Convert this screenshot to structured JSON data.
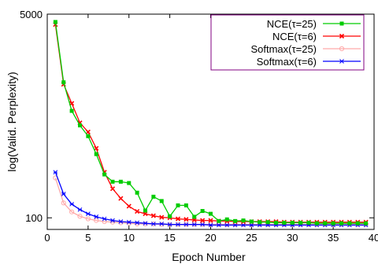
{
  "chart_data": {
    "type": "line",
    "xlabel": "Epoch Number",
    "ylabel": "log(Valid. Perplexity)",
    "xlim": [
      0,
      40
    ],
    "ylim": [
      80,
      5000
    ],
    "yscale": "log",
    "xticks": [
      0,
      5,
      10,
      15,
      20,
      25,
      30,
      35,
      40
    ],
    "yticks": [
      100,
      5000
    ],
    "grid": false,
    "legend": "top-right",
    "series": [
      {
        "name": "NCE(τ=25)",
        "color": "#00cc00",
        "marker": "square-filled",
        "x": [
          1,
          2,
          3,
          4,
          5,
          6,
          7,
          8,
          9,
          10,
          11,
          12,
          13,
          14,
          15,
          16,
          17,
          18,
          19,
          20,
          21,
          22,
          23,
          24,
          25,
          26,
          27,
          28,
          29,
          30,
          31,
          32,
          33,
          34,
          35,
          36,
          37,
          38,
          39
        ],
        "values": [
          4300,
          1350,
          780,
          590,
          480,
          340,
          230,
          200,
          200,
          195,
          162,
          115,
          150,
          138,
          103,
          127,
          127,
          102,
          114,
          108,
          94,
          97,
          94,
          95,
          93,
          92,
          92,
          91,
          91,
          91,
          91,
          91,
          90,
          90,
          90,
          90,
          90,
          90,
          90
        ]
      },
      {
        "name": "NCE(τ=6)",
        "color": "#ff0000",
        "marker": "x-filled",
        "x": [
          1,
          2,
          3,
          4,
          5,
          6,
          7,
          8,
          9,
          10,
          11,
          12,
          13,
          14,
          15,
          16,
          17,
          18,
          19,
          20,
          21,
          22,
          23,
          24,
          25,
          26,
          27,
          28,
          29,
          30,
          31,
          32,
          33,
          34,
          35,
          36,
          37,
          38,
          39
        ],
        "values": [
          4100,
          1300,
          900,
          620,
          520,
          380,
          240,
          175,
          145,
          125,
          113,
          108,
          104,
          101,
          100,
          98,
          97,
          96,
          95,
          95,
          94,
          94,
          93,
          93,
          93,
          93,
          93,
          93,
          92,
          92,
          92,
          92,
          92,
          92,
          92,
          92,
          92,
          92,
          92
        ]
      },
      {
        "name": "Softmax(τ=25)",
        "color": "#ffaaaa",
        "marker": "circle-open",
        "x": [
          1,
          2,
          3,
          4,
          5,
          6,
          7,
          8,
          9,
          10,
          11,
          12,
          13,
          14,
          15,
          16,
          17,
          18,
          19,
          20,
          21,
          22,
          23,
          24,
          25,
          26,
          27,
          28,
          29,
          30,
          31,
          32,
          33,
          34,
          35,
          36,
          37,
          38,
          39
        ],
        "values": [
          215,
          133,
          112,
          103,
          98,
          95,
          93,
          92,
          91,
          90,
          89,
          89,
          89,
          88,
          88,
          88,
          88,
          88,
          88,
          88,
          88,
          88,
          88,
          88,
          88,
          88,
          88,
          88,
          88,
          88,
          88,
          88,
          88,
          88,
          88,
          88,
          88,
          88,
          88
        ]
      },
      {
        "name": "Softmax(τ=6)",
        "color": "#0000ff",
        "marker": "star",
        "x": [
          1,
          2,
          3,
          4,
          5,
          6,
          7,
          8,
          9,
          10,
          11,
          12,
          13,
          14,
          15,
          16,
          17,
          18,
          19,
          20,
          21,
          22,
          23,
          24,
          25,
          26,
          27,
          28,
          29,
          30,
          31,
          32,
          33,
          34,
          35,
          36,
          37,
          38,
          39
        ],
        "values": [
          240,
          158,
          130,
          117,
          108,
          102,
          98,
          95,
          93,
          92,
          91,
          90,
          89,
          89,
          88,
          88,
          88,
          88,
          88,
          87,
          87,
          87,
          87,
          87,
          87,
          87,
          87,
          87,
          87,
          87,
          87,
          87,
          87,
          87,
          87,
          87,
          87,
          87,
          87
        ]
      }
    ]
  }
}
